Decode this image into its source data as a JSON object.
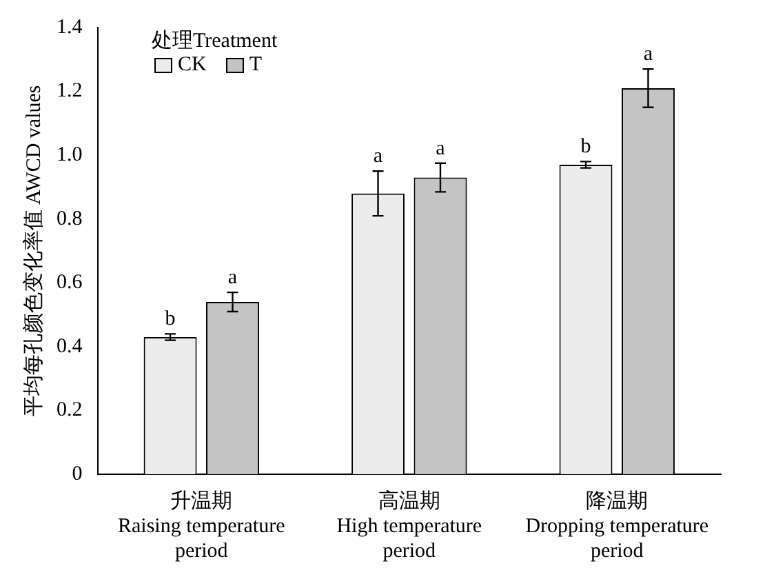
{
  "chart_data": {
    "type": "bar",
    "ylabel": "平均每孔颜色变化率值 AWCD values",
    "legend_title": "处理Treatment",
    "legend": "top left",
    "grid": false,
    "categories": [
      "升温期\nRaising temperature\nperiod",
      "高温期\nHigh temperature\nperiod",
      "降温期\nDropping temperature\nperiod"
    ],
    "ylim": [
      0,
      1.4
    ],
    "yticks": [
      {
        "value": 0,
        "label": "0"
      },
      0.2,
      0.4,
      0.6,
      0.8,
      {
        "value": 1,
        "label": "1.0"
      },
      1.2,
      1.4
    ],
    "series": [
      {
        "name": "CK",
        "color": "#ececec",
        "values": [
          0.43,
          0.88,
          0.97
        ],
        "errors": [
          0.01,
          0.07,
          0.01
        ],
        "value_labels": [
          "b",
          "a",
          "b"
        ]
      },
      {
        "name": "T",
        "color": "#c4c4c4",
        "values": [
          0.54,
          0.93,
          1.21
        ],
        "errors": [
          0.03,
          0.045,
          0.06
        ],
        "value_labels": [
          "a",
          "a",
          "a"
        ]
      }
    ]
  }
}
